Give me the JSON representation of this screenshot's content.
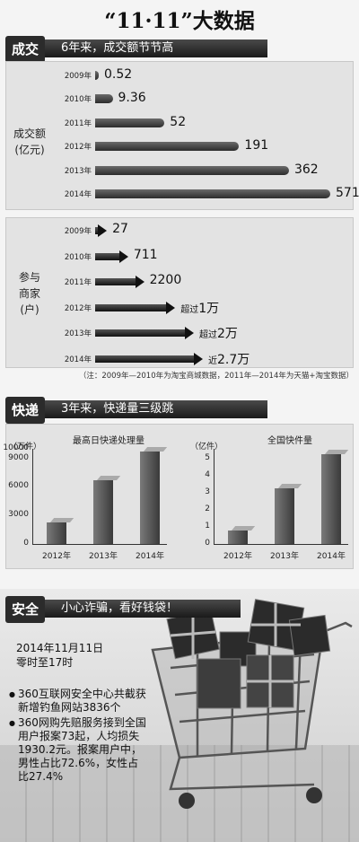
{
  "title": "“11·11”大数据",
  "section1": {
    "tag": "成交",
    "banner": "6年来，成交额节节高",
    "label1": [
      "成交额",
      "(亿元)"
    ],
    "label2": [
      "参与",
      "商家",
      "(户)"
    ],
    "note": "（注：2009年—2010年为淘宝商城数据，2011年—2014年为天猫+淘宝数据）"
  },
  "section2": {
    "tag": "快递",
    "banner": "3年来，快递量三级跳"
  },
  "section3": {
    "tag": "安全",
    "banner": "小心诈骗，看好钱袋！",
    "date_line1": "2014年11月11日",
    "date_line2": "零时至17时",
    "bullet1": [
      "360互联网安全中心共截获",
      "新增钓鱼网站3836个"
    ],
    "bullet2": [
      "360网购先赔服务接到全国",
      "用户报案73起，人均损失",
      "1930.2元。报案用户中，",
      "男性占比72.6%，女性占",
      "比27.4%"
    ]
  },
  "chart_data": [
    {
      "type": "bar",
      "orientation": "horizontal",
      "categories": [
        "2009年",
        "2010年",
        "2011年",
        "2012年",
        "2013年",
        "2014年"
      ],
      "values": [
        0.52,
        9.36,
        52,
        191,
        362,
        571
      ],
      "value_labels": [
        "0.52",
        "9.36",
        "52",
        "191",
        "362",
        "571"
      ],
      "ylabel": "成交额(亿元)"
    },
    {
      "type": "bar",
      "orientation": "horizontal",
      "categories": [
        "2009年",
        "2010年",
        "2011年",
        "2012年",
        "2013年",
        "2014年"
      ],
      "values": [
        27,
        711,
        2200,
        10000,
        20000,
        27000
      ],
      "value_labels": [
        {
          "prefix": "",
          "num": "27"
        },
        {
          "prefix": "",
          "num": "711"
        },
        {
          "prefix": "",
          "num": "2200"
        },
        {
          "prefix": "超过",
          "num": "1万"
        },
        {
          "prefix": "超过",
          "num": "2万"
        },
        {
          "prefix": "近",
          "num": "2.7万"
        }
      ],
      "ylabel": "参与商家(户)"
    },
    {
      "type": "bar",
      "title": "最高日快递处理量",
      "unit": "（万件）",
      "categories": [
        "2012年",
        "2013年",
        "2014年"
      ],
      "values": [
        2300,
        6700,
        9700
      ],
      "yticks": [
        "0",
        "3000",
        "6000",
        "9000",
        "10000"
      ],
      "ylim": [
        0,
        10000
      ]
    },
    {
      "type": "bar",
      "title": "全国快件量",
      "unit": "（亿件）",
      "categories": [
        "2012年",
        "2013年",
        "2014年"
      ],
      "values": [
        0.8,
        3.3,
        5.3
      ],
      "yticks": [
        "0",
        "1",
        "2",
        "3",
        "4",
        "5"
      ],
      "ylim": [
        0,
        5.6
      ]
    }
  ]
}
